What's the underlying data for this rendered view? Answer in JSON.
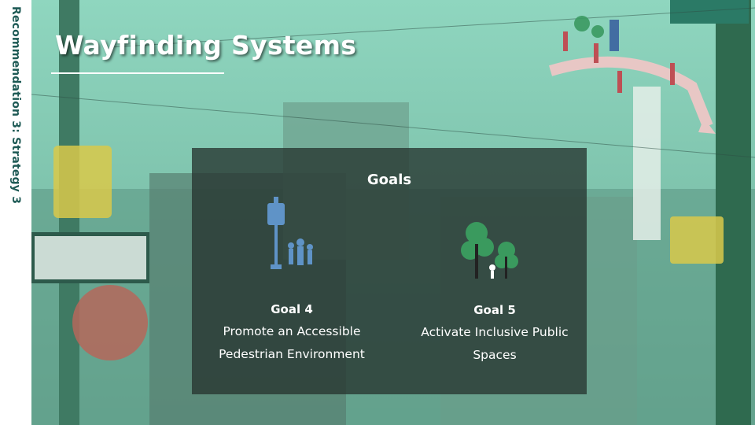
{
  "sidebar": {
    "label": "Recommendation 3: Strategy 3"
  },
  "header": {
    "title": "Wayfinding Systems"
  },
  "goals": {
    "heading": "Goals",
    "items": [
      {
        "label": "Goal 4",
        "text": "Promote an Accessible Pedestrian Environment"
      },
      {
        "label": "Goal 5",
        "text": "Activate Inclusive Public Spaces"
      }
    ]
  }
}
